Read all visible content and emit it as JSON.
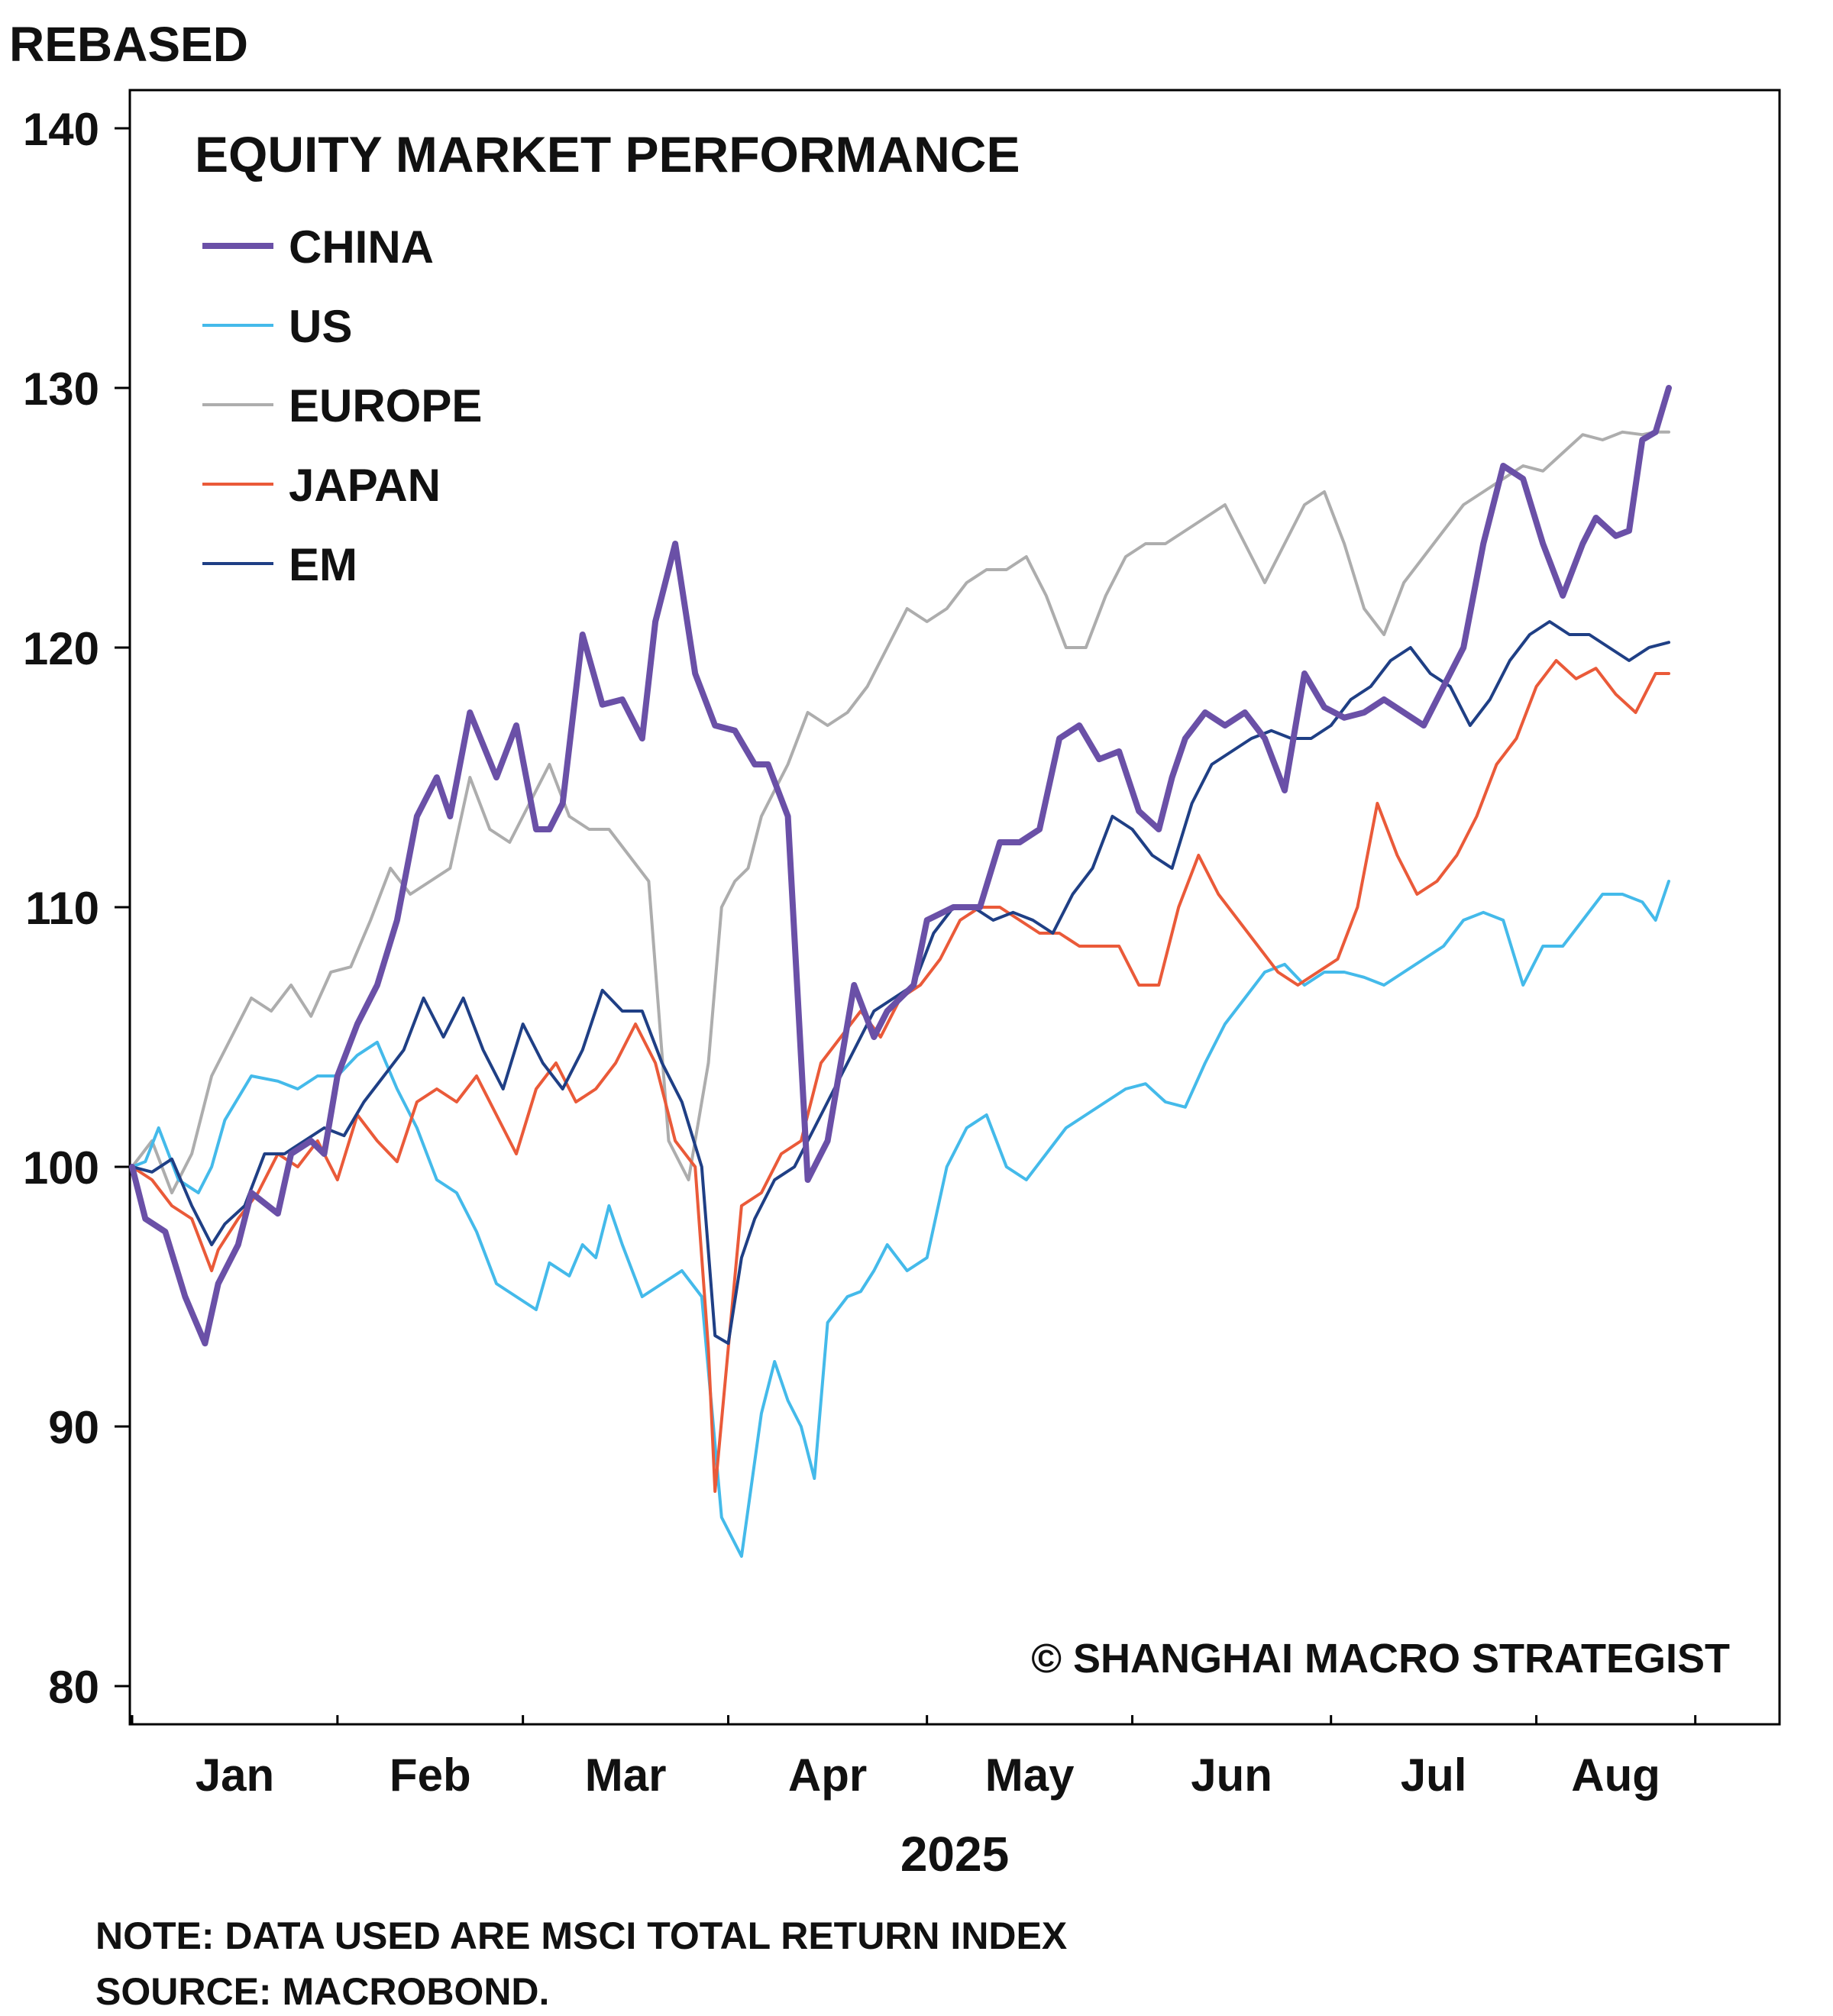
{
  "chart_data": {
    "type": "line",
    "title": "EQUITY MARKET PERFORMANCE",
    "ylabel": "REBASED",
    "xlabel": "2025",
    "ylim": [
      80,
      140
    ],
    "yticks": [
      80,
      90,
      100,
      110,
      120,
      130,
      140
    ],
    "x_months": [
      "Jan",
      "Feb",
      "Mar",
      "Apr",
      "May",
      "Jun",
      "Jul",
      "Aug"
    ],
    "x_range_days": [
      0,
      232
    ],
    "grid": false,
    "legend_position": "top-left",
    "watermark": "© SHANGHAI MACRO STRATEGIST",
    "note": "NOTE: DATA USED ARE MSCI TOTAL RETURN INDEX",
    "source": "SOURCE: MACROBOND.",
    "series": [
      {
        "name": "CHINA",
        "color": "#6a50a7",
        "width": 8,
        "x": [
          0,
          2,
          5,
          8,
          11,
          13,
          16,
          18,
          22,
          24,
          27,
          29,
          31,
          34,
          37,
          40,
          43,
          46,
          48,
          51,
          55,
          58,
          61,
          63,
          65,
          68,
          71,
          74,
          77,
          79,
          82,
          85,
          88,
          91,
          94,
          96,
          99,
          102,
          105,
          109,
          112,
          114,
          118,
          120,
          124,
          128,
          131,
          134,
          137,
          140,
          143,
          146,
          149,
          152,
          155,
          157,
          159,
          162,
          165,
          168,
          171,
          174,
          177,
          180,
          183,
          186,
          189,
          192,
          195,
          198,
          201,
          204,
          207,
          210,
          213,
          216,
          219,
          221,
          224,
          226,
          228,
          230,
          232
        ],
        "values": [
          100,
          98,
          97.5,
          95,
          93.2,
          95.5,
          97,
          99,
          98.2,
          100.5,
          101,
          100.5,
          103.5,
          105.5,
          107,
          109.5,
          113.5,
          115,
          113.5,
          117.5,
          115,
          117,
          113,
          113,
          114,
          120.5,
          117.8,
          118,
          116.5,
          121,
          124,
          119,
          117,
          116.8,
          115.5,
          115.5,
          113.5,
          99.5,
          101,
          107,
          105,
          106,
          107,
          109.5,
          110,
          110,
          112.5,
          112.5,
          113,
          116.5,
          117,
          115.7,
          116,
          113.7,
          113,
          115,
          116.5,
          117.5,
          117,
          117.5,
          116.5,
          114.5,
          119,
          117.7,
          117.3,
          117.5,
          118,
          117.5,
          117,
          118.5,
          120,
          124,
          127,
          126.5,
          124,
          122,
          124,
          125,
          124.3,
          124.5,
          128,
          128.3,
          130
        ]
      },
      {
        "name": "US",
        "color": "#44baea",
        "width": 4,
        "x": [
          0,
          2,
          4,
          7,
          10,
          12,
          14,
          18,
          22,
          25,
          28,
          31,
          34,
          37,
          40,
          43,
          46,
          49,
          52,
          55,
          58,
          61,
          63,
          66,
          68,
          70,
          72,
          74,
          77,
          80,
          83,
          86,
          89,
          92,
          95,
          97,
          99,
          101,
          103,
          105,
          108,
          110,
          112,
          114,
          117,
          120,
          123,
          126,
          129,
          132,
          135,
          138,
          141,
          144,
          147,
          150,
          153,
          156,
          159,
          162,
          165,
          168,
          171,
          174,
          177,
          180,
          183,
          186,
          189,
          192,
          195,
          198,
          201,
          204,
          207,
          210,
          213,
          216,
          219,
          222,
          225,
          228,
          230,
          232
        ],
        "values": [
          100,
          100.2,
          101.5,
          99.5,
          99,
          100,
          101.8,
          103.5,
          103.3,
          103,
          103.5,
          103.5,
          104.3,
          104.8,
          103,
          101.5,
          99.5,
          99,
          97.5,
          95.5,
          95,
          94.5,
          96.3,
          95.8,
          97,
          96.5,
          98.5,
          97,
          95,
          95.5,
          96,
          95,
          86.5,
          85,
          90.5,
          92.5,
          91,
          90,
          88,
          94,
          95,
          95.2,
          96,
          97,
          96,
          96.5,
          100,
          101.5,
          102,
          100,
          99.5,
          100.5,
          101.5,
          102,
          102.5,
          103,
          103.2,
          102.5,
          102.3,
          104,
          105.5,
          106.5,
          107.5,
          107.8,
          107,
          107.5,
          107.5,
          107.3,
          107,
          107.5,
          108,
          108.5,
          109.5,
          109.8,
          109.5,
          107,
          108.5,
          108.5,
          109.5,
          110.5,
          110.5,
          110.2,
          109.5,
          111
        ]
      },
      {
        "name": "EUROPE",
        "color": "#adadad",
        "width": 4,
        "x": [
          0,
          3,
          6,
          9,
          12,
          15,
          18,
          21,
          24,
          27,
          30,
          33,
          36,
          39,
          42,
          45,
          48,
          51,
          54,
          57,
          60,
          63,
          66,
          69,
          72,
          75,
          78,
          81,
          84,
          87,
          89,
          91,
          93,
          95,
          97,
          99,
          102,
          105,
          108,
          111,
          114,
          117,
          120,
          123,
          126,
          129,
          132,
          135,
          138,
          141,
          144,
          147,
          150,
          153,
          156,
          159,
          162,
          165,
          168,
          171,
          174,
          177,
          180,
          183,
          186,
          189,
          192,
          195,
          198,
          201,
          204,
          207,
          210,
          213,
          216,
          219,
          222,
          225,
          228,
          230,
          232
        ],
        "values": [
          100,
          101,
          99,
          100.5,
          103.5,
          105,
          106.5,
          106,
          107,
          105.8,
          107.5,
          107.7,
          109.5,
          111.5,
          110.5,
          111,
          111.5,
          115,
          113,
          112.5,
          114,
          115.5,
          113.5,
          113,
          113,
          112,
          111,
          101,
          99.5,
          104,
          110,
          111,
          111.5,
          113.5,
          114.5,
          115.5,
          117.5,
          117,
          117.5,
          118.5,
          120,
          121.5,
          121,
          121.5,
          122.5,
          123,
          123,
          123.5,
          122,
          120,
          120,
          122,
          123.5,
          124,
          124,
          124.5,
          125,
          125.5,
          124,
          122.5,
          124,
          125.5,
          126,
          124,
          121.5,
          120.5,
          122.5,
          123.5,
          124.5,
          125.5,
          126,
          126.5,
          127,
          126.8,
          127.5,
          128.2,
          128,
          128.3,
          128.2,
          128.3,
          128.3
        ]
      },
      {
        "name": "JAPAN",
        "color": "#ea5a39",
        "width": 4,
        "x": [
          0,
          3,
          6,
          9,
          12,
          13,
          16,
          19,
          22,
          25,
          28,
          31,
          34,
          37,
          40,
          43,
          46,
          49,
          52,
          55,
          58,
          61,
          64,
          67,
          70,
          73,
          76,
          79,
          82,
          85,
          87,
          88,
          90,
          92,
          95,
          98,
          101,
          104,
          107,
          110,
          113,
          116,
          119,
          122,
          125,
          128,
          131,
          134,
          137,
          140,
          143,
          146,
          149,
          152,
          155,
          158,
          161,
          164,
          167,
          170,
          173,
          176,
          179,
          182,
          185,
          188,
          191,
          194,
          197,
          200,
          203,
          206,
          209,
          212,
          215,
          218,
          221,
          224,
          227,
          230,
          232
        ],
        "values": [
          100,
          99.5,
          98.5,
          98,
          96,
          96.8,
          98,
          99,
          100.5,
          100,
          101,
          99.5,
          102,
          101,
          100.2,
          102.5,
          103,
          102.5,
          103.5,
          102,
          100.5,
          103,
          104,
          102.5,
          103,
          104,
          105.5,
          104,
          101,
          100,
          93,
          87.5,
          93,
          98.5,
          99,
          100.5,
          101,
          104,
          105,
          106,
          105,
          106.5,
          107,
          108,
          109.5,
          110,
          110,
          109.5,
          109,
          109,
          108.5,
          108.5,
          108.5,
          107,
          107,
          110,
          112,
          110.5,
          109.5,
          108.5,
          107.5,
          107,
          107.5,
          108,
          110,
          114,
          112,
          110.5,
          111,
          112,
          113.5,
          115.5,
          116.5,
          118.5,
          119.5,
          118.8,
          119.2,
          118.2,
          117.5,
          119,
          119
        ]
      },
      {
        "name": "EM",
        "color": "#1f3f85",
        "width": 4,
        "x": [
          0,
          3,
          6,
          9,
          12,
          14,
          17,
          20,
          23,
          26,
          29,
          32,
          35,
          38,
          41,
          44,
          47,
          50,
          53,
          56,
          59,
          62,
          65,
          68,
          71,
          74,
          77,
          80,
          83,
          86,
          88,
          90,
          92,
          94,
          97,
          100,
          103,
          106,
          109,
          112,
          115,
          118,
          121,
          124,
          127,
          130,
          133,
          136,
          139,
          142,
          145,
          148,
          151,
          154,
          157,
          160,
          163,
          166,
          169,
          172,
          175,
          178,
          181,
          184,
          187,
          190,
          193,
          196,
          199,
          202,
          205,
          208,
          211,
          214,
          217,
          220,
          223,
          226,
          229,
          232
        ],
        "values": [
          100,
          99.8,
          100.3,
          98.5,
          97,
          97.8,
          98.5,
          100.5,
          100.5,
          101,
          101.5,
          101.2,
          102.5,
          103.5,
          104.5,
          106.5,
          105,
          106.5,
          104.5,
          103,
          105.5,
          104,
          103,
          104.5,
          106.8,
          106,
          106,
          104,
          102.5,
          100,
          93.5,
          93.2,
          96.5,
          98,
          99.5,
          100,
          101.5,
          103,
          104.5,
          106,
          106.5,
          107,
          109,
          110,
          110,
          109.5,
          109.8,
          109.5,
          109,
          110.5,
          111.5,
          113.5,
          113,
          112,
          111.5,
          114,
          115.5,
          116,
          116.5,
          116.8,
          116.5,
          116.5,
          117,
          118,
          118.5,
          119.5,
          120,
          119,
          118.5,
          117,
          118,
          119.5,
          120.5,
          121,
          120.5,
          120.5,
          120,
          119.5,
          120,
          120.2
        ]
      }
    ]
  }
}
